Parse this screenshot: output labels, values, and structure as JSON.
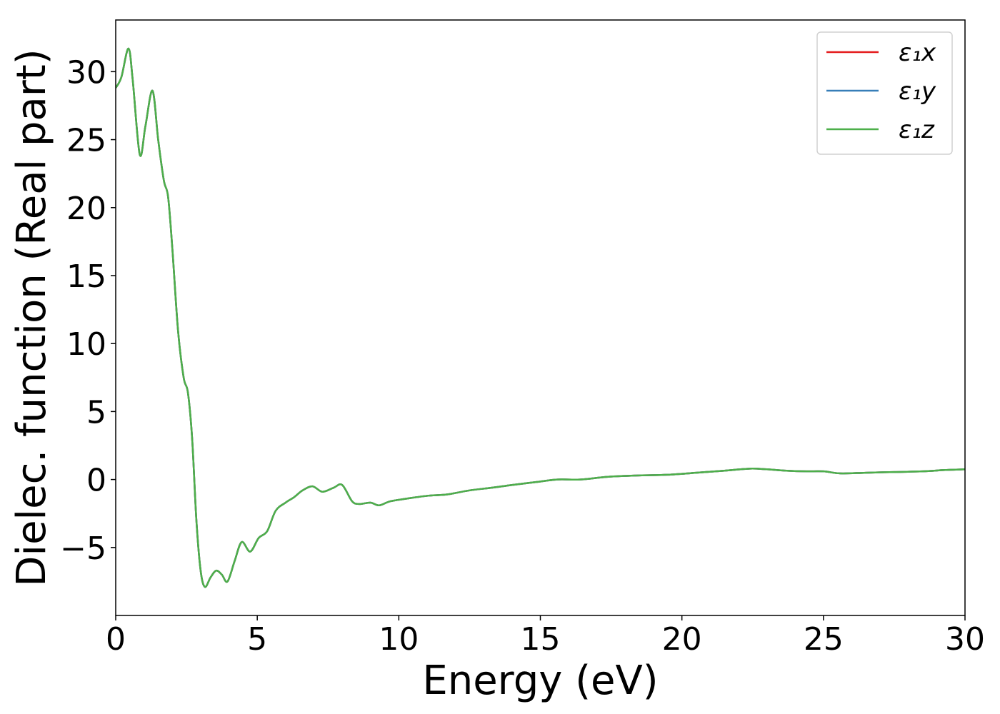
{
  "chart_data": {
    "type": "line",
    "title": "",
    "xlabel": "Energy (eV)",
    "ylabel": "Dielec. function (Real part)",
    "xlim": [
      0,
      30
    ],
    "ylim": [
      -10,
      33.8
    ],
    "xticks": [
      0,
      5,
      10,
      15,
      20,
      25,
      30
    ],
    "yticks": [
      -5,
      0,
      5,
      10,
      15,
      20,
      25,
      30
    ],
    "xtick_labels": [
      "0",
      "5",
      "10",
      "15",
      "20",
      "25",
      "30"
    ],
    "ytick_labels": [
      "−5",
      "0",
      "5",
      "10",
      "15",
      "20",
      "25",
      "30"
    ],
    "grid": false,
    "legend_position": "top-right",
    "series": [
      {
        "name": "ε₁x",
        "color": "#e41a1c",
        "x": [
          0,
          0.2,
          0.45,
          0.6,
          0.85,
          1.05,
          1.3,
          1.5,
          1.7,
          1.85,
          2.0,
          2.2,
          2.4,
          2.55,
          2.7,
          2.85,
          3.0,
          3.15,
          3.35,
          3.55,
          3.75,
          3.95,
          4.2,
          4.45,
          4.75,
          5.05,
          5.35,
          5.65,
          6.0,
          6.3,
          6.6,
          6.95,
          7.3,
          7.7,
          8.0,
          8.35,
          8.6,
          9.0,
          9.3,
          9.7,
          10.3,
          11.0,
          11.7,
          12.5,
          13.3,
          14.0,
          14.8,
          15.6,
          16.4,
          17.4,
          18.5,
          19.5,
          20.5,
          21.5,
          22.4,
          23.0,
          23.7,
          24.4,
          25.0,
          25.6,
          26.5,
          27.5,
          28.5,
          29.3,
          30.0
        ],
        "values": [
          28.8,
          29.6,
          31.7,
          29.4,
          23.9,
          26.0,
          28.6,
          25.0,
          22.0,
          20.8,
          17.0,
          11.0,
          7.5,
          6.4,
          3.0,
          -3.0,
          -6.7,
          -7.9,
          -7.2,
          -6.7,
          -7.0,
          -7.5,
          -6.0,
          -4.6,
          -5.3,
          -4.3,
          -3.8,
          -2.3,
          -1.7,
          -1.3,
          -0.8,
          -0.5,
          -0.9,
          -0.6,
          -0.4,
          -1.6,
          -1.8,
          -1.7,
          -1.9,
          -1.6,
          -1.4,
          -1.2,
          -1.1,
          -0.8,
          -0.6,
          -0.4,
          -0.2,
          0.0,
          0.0,
          0.2,
          0.3,
          0.35,
          0.5,
          0.65,
          0.8,
          0.75,
          0.65,
          0.6,
          0.6,
          0.45,
          0.5,
          0.55,
          0.6,
          0.7,
          0.75
        ]
      },
      {
        "name": "ε₁y",
        "color": "#377eb8",
        "x": [
          0,
          0.2,
          0.45,
          0.6,
          0.85,
          1.05,
          1.3,
          1.5,
          1.7,
          1.85,
          2.0,
          2.2,
          2.4,
          2.55,
          2.7,
          2.85,
          3.0,
          3.15,
          3.35,
          3.55,
          3.75,
          3.95,
          4.2,
          4.45,
          4.75,
          5.05,
          5.35,
          5.65,
          6.0,
          6.3,
          6.6,
          6.95,
          7.3,
          7.7,
          8.0,
          8.35,
          8.6,
          9.0,
          9.3,
          9.7,
          10.3,
          11.0,
          11.7,
          12.5,
          13.3,
          14.0,
          14.8,
          15.6,
          16.4,
          17.4,
          18.5,
          19.5,
          20.5,
          21.5,
          22.4,
          23.0,
          23.7,
          24.4,
          25.0,
          25.6,
          26.5,
          27.5,
          28.5,
          29.3,
          30.0
        ],
        "values": [
          28.8,
          29.6,
          31.7,
          29.4,
          23.9,
          26.0,
          28.6,
          25.0,
          22.0,
          20.8,
          17.0,
          11.0,
          7.5,
          6.4,
          3.0,
          -3.0,
          -6.7,
          -7.9,
          -7.2,
          -6.7,
          -7.0,
          -7.5,
          -6.0,
          -4.6,
          -5.3,
          -4.3,
          -3.8,
          -2.3,
          -1.7,
          -1.3,
          -0.8,
          -0.5,
          -0.9,
          -0.6,
          -0.4,
          -1.6,
          -1.8,
          -1.7,
          -1.9,
          -1.6,
          -1.4,
          -1.2,
          -1.1,
          -0.8,
          -0.6,
          -0.4,
          -0.2,
          0.0,
          0.0,
          0.2,
          0.3,
          0.35,
          0.5,
          0.65,
          0.8,
          0.75,
          0.65,
          0.6,
          0.6,
          0.45,
          0.5,
          0.55,
          0.6,
          0.7,
          0.75
        ]
      },
      {
        "name": "ε₁z",
        "color": "#4daf4a",
        "x": [
          0,
          0.2,
          0.45,
          0.6,
          0.85,
          1.05,
          1.3,
          1.5,
          1.7,
          1.85,
          2.0,
          2.2,
          2.4,
          2.55,
          2.7,
          2.85,
          3.0,
          3.15,
          3.35,
          3.55,
          3.75,
          3.95,
          4.2,
          4.45,
          4.75,
          5.05,
          5.35,
          5.65,
          6.0,
          6.3,
          6.6,
          6.95,
          7.3,
          7.7,
          8.0,
          8.35,
          8.6,
          9.0,
          9.3,
          9.7,
          10.3,
          11.0,
          11.7,
          12.5,
          13.3,
          14.0,
          14.8,
          15.6,
          16.4,
          17.4,
          18.5,
          19.5,
          20.5,
          21.5,
          22.4,
          23.0,
          23.7,
          24.4,
          25.0,
          25.6,
          26.5,
          27.5,
          28.5,
          29.3,
          30.0
        ],
        "values": [
          28.8,
          29.6,
          31.7,
          29.4,
          23.9,
          26.0,
          28.6,
          25.0,
          22.0,
          20.8,
          17.0,
          11.0,
          7.5,
          6.4,
          3.0,
          -3.0,
          -6.7,
          -7.9,
          -7.2,
          -6.7,
          -7.0,
          -7.5,
          -6.0,
          -4.6,
          -5.3,
          -4.3,
          -3.8,
          -2.3,
          -1.7,
          -1.3,
          -0.8,
          -0.5,
          -0.9,
          -0.6,
          -0.4,
          -1.6,
          -1.8,
          -1.7,
          -1.9,
          -1.6,
          -1.4,
          -1.2,
          -1.1,
          -0.8,
          -0.6,
          -0.4,
          -0.2,
          0.0,
          0.0,
          0.2,
          0.3,
          0.35,
          0.5,
          0.65,
          0.8,
          0.75,
          0.65,
          0.6,
          0.6,
          0.45,
          0.5,
          0.55,
          0.6,
          0.7,
          0.75
        ]
      }
    ]
  }
}
